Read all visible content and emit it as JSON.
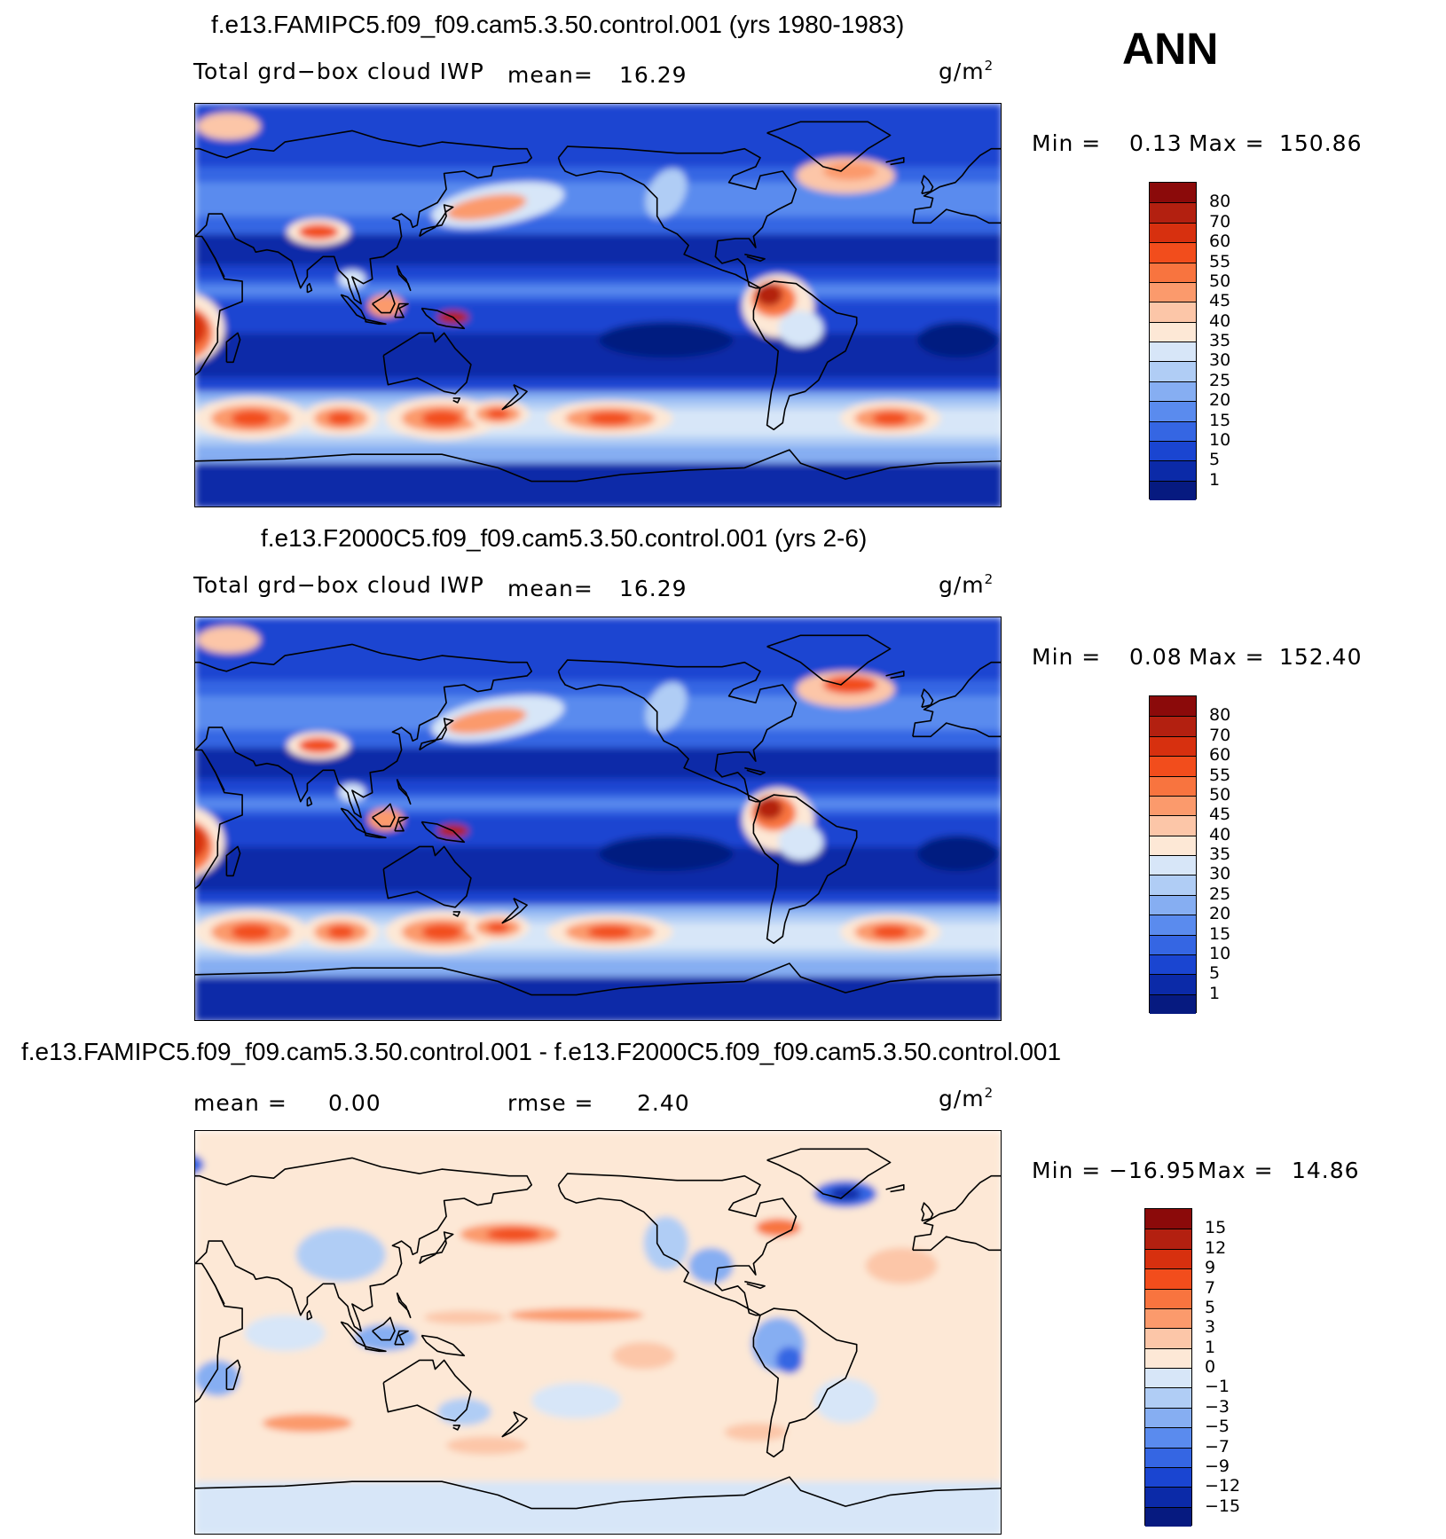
{
  "season": "ANN",
  "panels": [
    {
      "title": "f.e13.FAMIPC5.f09_f09.cam5.3.50.control.001 (yrs 1980-1983)",
      "variable": "Total grd−box cloud IWP",
      "stat1_label": "mean=",
      "stat1_value": "16.29",
      "stat2_label": "",
      "stat2_value": "",
      "units": "g/m",
      "units_exp": "2",
      "min_label": "Min =",
      "min_value": "0.13",
      "max_label": "Max =",
      "max_value": "150.86",
      "colorbar": {
        "levels": [
          "80",
          "70",
          "60",
          "55",
          "50",
          "45",
          "40",
          "35",
          "30",
          "25",
          "20",
          "15",
          "10",
          "5",
          "1"
        ],
        "colors": [
          "#8b0a0a",
          "#b32010",
          "#d7300f",
          "#f24d1c",
          "#f8743f",
          "#fb9a6c",
          "#fcc6a8",
          "#fde8d6",
          "#d7e6f8",
          "#b0cdf5",
          "#86aef2",
          "#5a8bee",
          "#3566e3",
          "#1a45d1",
          "#0b2aa8",
          "#061a80"
        ]
      }
    },
    {
      "title": "f.e13.F2000C5.f09_f09.cam5.3.50.control.001 (yrs 2-6)",
      "variable": "Total grd−box cloud IWP",
      "stat1_label": "mean=",
      "stat1_value": "16.29",
      "stat2_label": "",
      "stat2_value": "",
      "units": "g/m",
      "units_exp": "2",
      "min_label": "Min =",
      "min_value": "0.08",
      "max_label": "Max =",
      "max_value": "152.40",
      "colorbar": {
        "levels": [
          "80",
          "70",
          "60",
          "55",
          "50",
          "45",
          "40",
          "35",
          "30",
          "25",
          "20",
          "15",
          "10",
          "5",
          "1"
        ],
        "colors": [
          "#8b0a0a",
          "#b32010",
          "#d7300f",
          "#f24d1c",
          "#f8743f",
          "#fb9a6c",
          "#fcc6a8",
          "#fde8d6",
          "#d7e6f8",
          "#b0cdf5",
          "#86aef2",
          "#5a8bee",
          "#3566e3",
          "#1a45d1",
          "#0b2aa8",
          "#061a80"
        ]
      }
    },
    {
      "title": "f.e13.FAMIPC5.f09_f09.cam5.3.50.control.001 - f.e13.F2000C5.f09_f09.cam5.3.50.control.001",
      "variable": "",
      "stat1_label": "mean =",
      "stat1_value": "0.00",
      "stat2_label": "rmse =",
      "stat2_value": "2.40",
      "units": "g/m",
      "units_exp": "2",
      "min_label": "Min =",
      "min_value": "−16.95",
      "max_label": "Max =",
      "max_value": "14.86",
      "colorbar": {
        "levels": [
          "15",
          "12",
          "9",
          "7",
          "5",
          "3",
          "1",
          "0",
          "−1",
          "−3",
          "−5",
          "−7",
          "−9",
          "−12",
          "−15"
        ],
        "colors": [
          "#8b0a0a",
          "#b32010",
          "#d7300f",
          "#f24d1c",
          "#f8743f",
          "#fb9a6c",
          "#fcc6a8",
          "#fde8d6",
          "#d7e6f8",
          "#b0cdf5",
          "#86aef2",
          "#5a8bee",
          "#3566e3",
          "#1a45d1",
          "#0b2aa8",
          "#061a80"
        ]
      }
    }
  ]
}
